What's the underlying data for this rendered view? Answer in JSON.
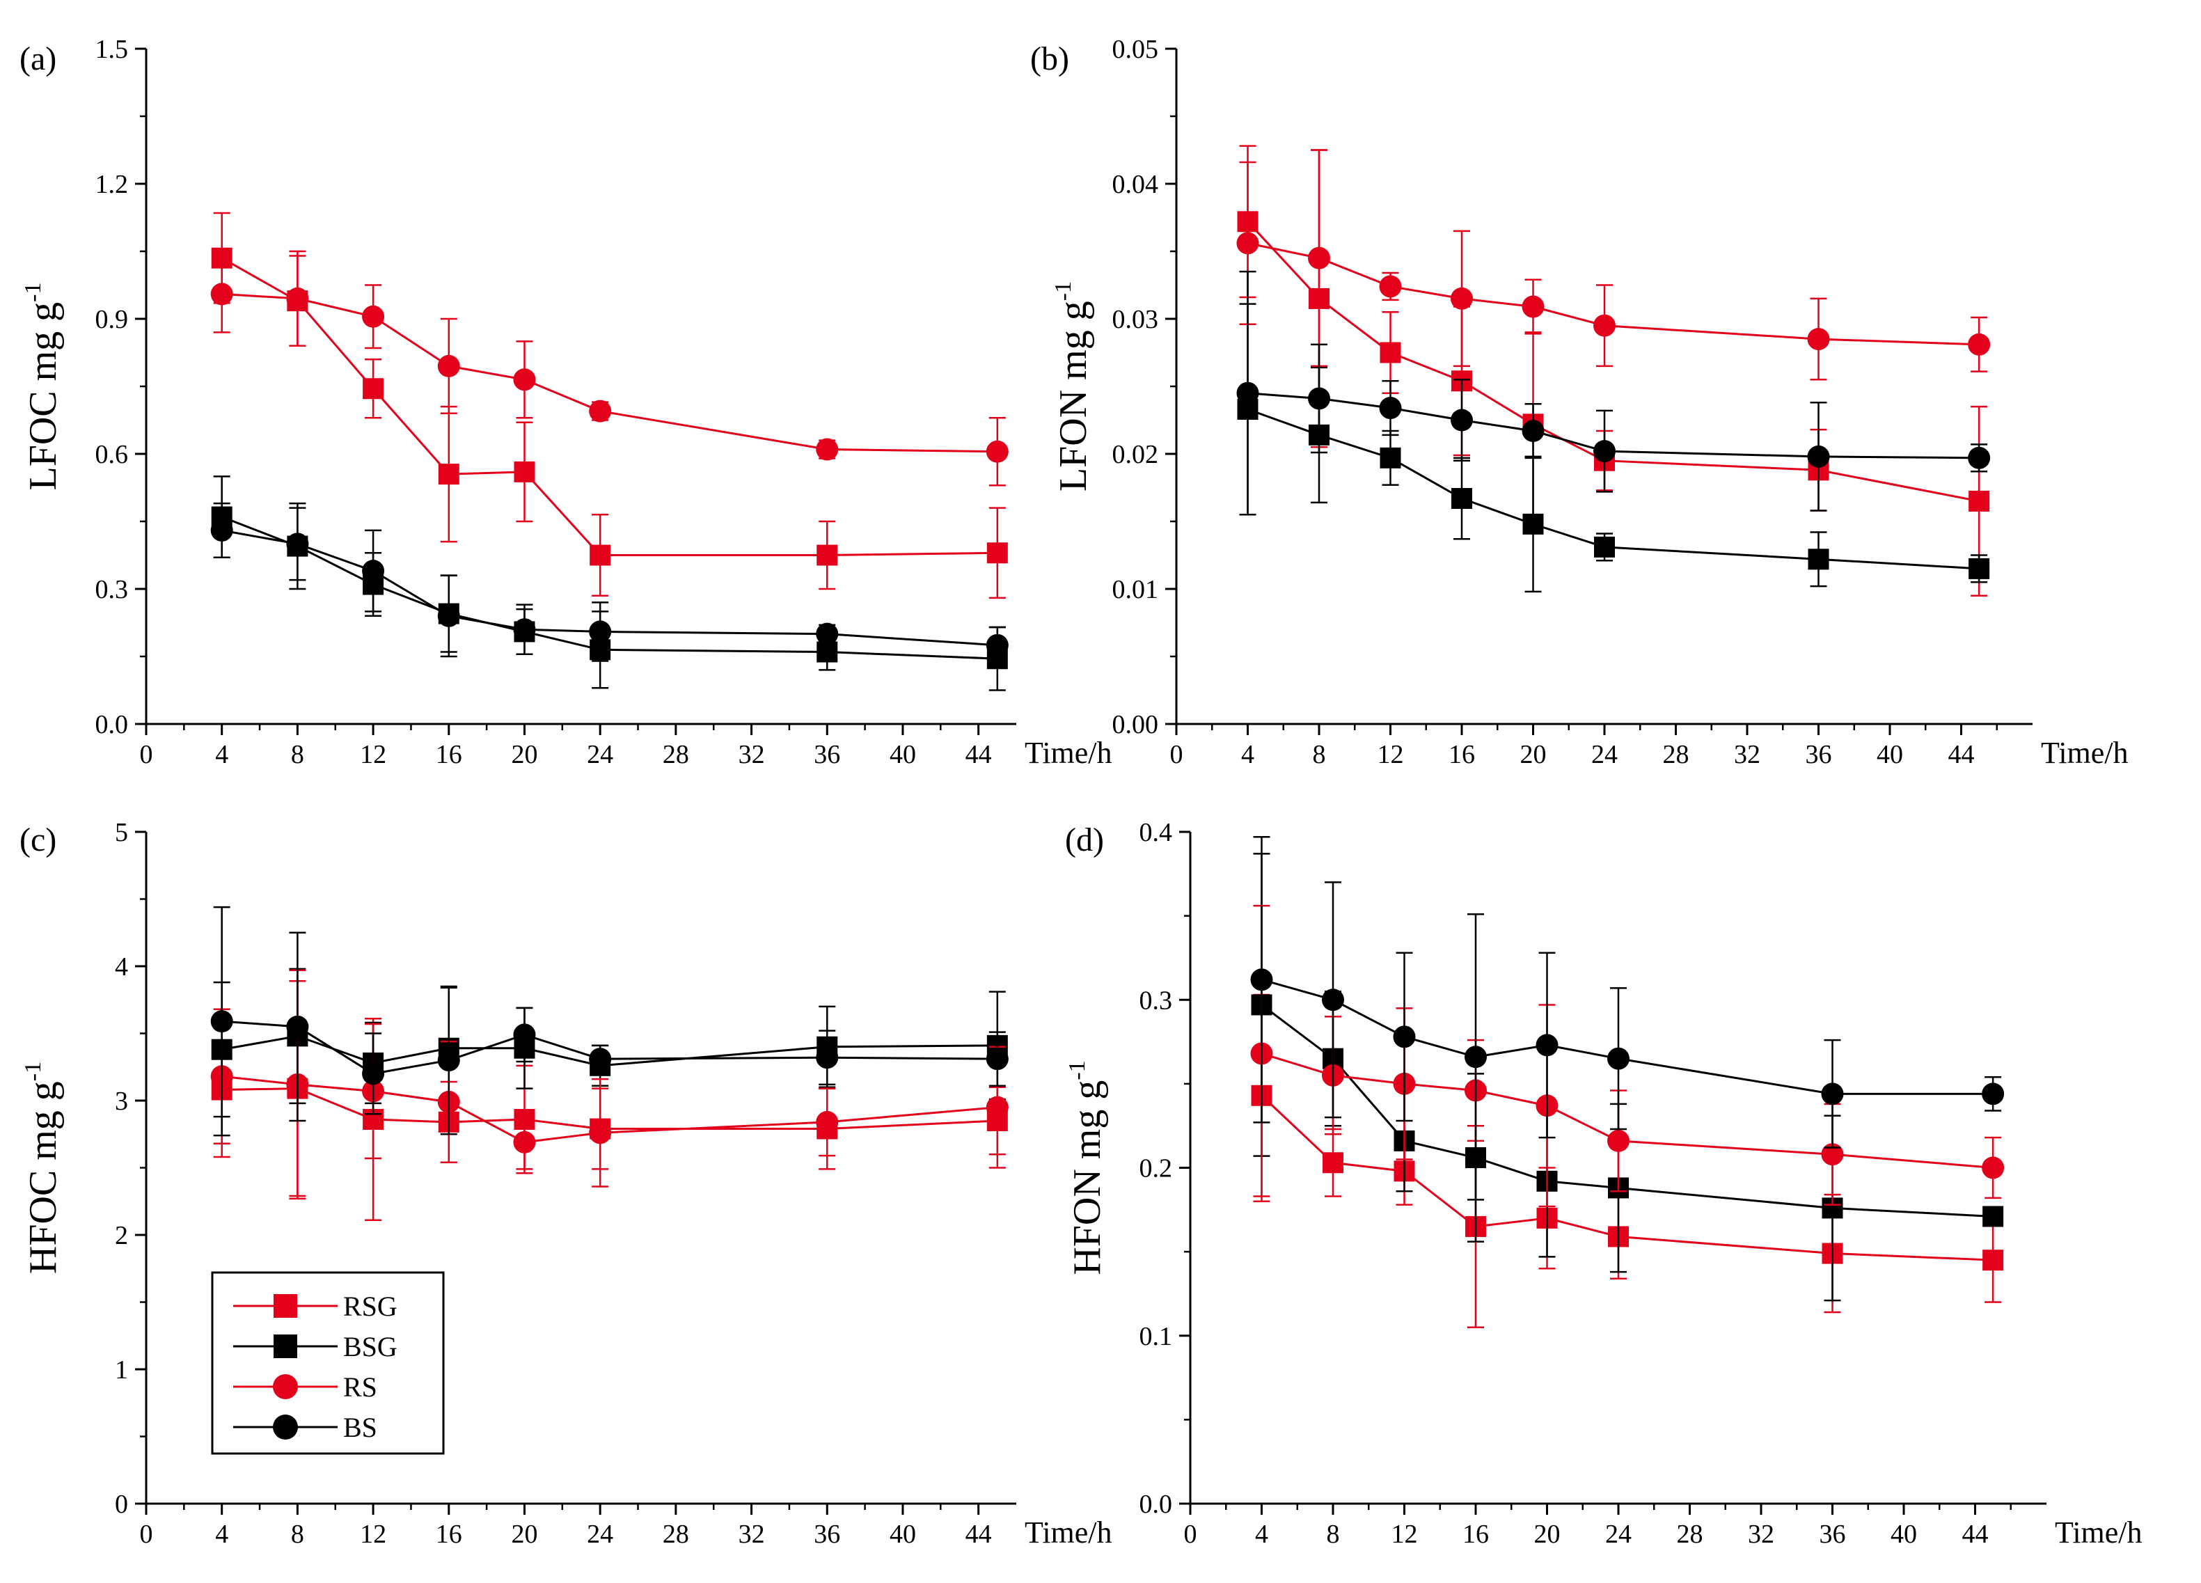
{
  "x_unit_label": "Time/h",
  "colors": {
    "red": "#e3001b",
    "black": "#000000"
  },
  "legend": [
    {
      "label": "RSG",
      "marker": "square",
      "color": "#e3001b"
    },
    {
      "label": "BSG",
      "marker": "square",
      "color": "#000000"
    },
    {
      "label": "RS",
      "marker": "circle",
      "color": "#e3001b"
    },
    {
      "label": "BS",
      "marker": "circle",
      "color": "#000000"
    }
  ],
  "chart_data": [
    {
      "type": "line",
      "panel": "(a)",
      "ylabel": "LFOC  mg g",
      "ylabel_sup": "-1",
      "xlim": [
        0,
        46
      ],
      "ylim": [
        0,
        1.5
      ],
      "xticks": [
        "0",
        "4",
        "8",
        "12",
        "16",
        "20",
        "24",
        "28",
        "32",
        "36",
        "40",
        "44"
      ],
      "yticks": [
        "0.0",
        "0.3",
        "0.6",
        "0.9",
        "1.2",
        "1.5"
      ],
      "x": [
        4,
        8,
        12,
        16,
        20,
        24,
        36,
        45
      ],
      "series": [
        {
          "name": "RSG",
          "values": [
            1.035,
            0.94,
            0.745,
            0.555,
            0.56,
            0.375,
            0.375,
            0.38
          ],
          "errors": [
            0.1,
            0.1,
            0.065,
            0.15,
            0.11,
            0.09,
            0.075,
            0.1
          ]
        },
        {
          "name": "BSG",
          "values": [
            0.46,
            0.395,
            0.31,
            0.245,
            0.205,
            0.165,
            0.16,
            0.145
          ],
          "errors": [
            0.09,
            0.095,
            0.07,
            0.085,
            0.05,
            0.085,
            0.04,
            0.07
          ]
        },
        {
          "name": "RS",
          "values": [
            0.955,
            0.945,
            0.905,
            0.795,
            0.765,
            0.695,
            0.61,
            0.605
          ],
          "errors": [
            0.085,
            0.105,
            0.07,
            0.105,
            0.085,
            0.02,
            0.02,
            0.075
          ]
        },
        {
          "name": "BS",
          "values": [
            0.43,
            0.4,
            0.34,
            0.24,
            0.21,
            0.205,
            0.2,
            0.175
          ],
          "errors": [
            0.06,
            0.08,
            0.09,
            0.09,
            0.055,
            0.065,
            0.02,
            0.04
          ]
        }
      ]
    },
    {
      "type": "line",
      "panel": "(b)",
      "ylabel": "LFON  mg g",
      "ylabel_sup": "-1",
      "xlim": [
        0,
        48
      ],
      "ylim": [
        0,
        0.05
      ],
      "xticks": [
        "0",
        "4",
        "8",
        "12",
        "16",
        "20",
        "24",
        "28",
        "32",
        "36",
        "40",
        "44"
      ],
      "yticks": [
        "0.00",
        "0.01",
        "0.02",
        "0.03",
        "0.04",
        "0.05"
      ],
      "x": [
        4,
        8,
        12,
        16,
        20,
        24,
        36,
        45
      ],
      "series": [
        {
          "name": "RSG",
          "values": [
            0.0372,
            0.0315,
            0.0275,
            0.0254,
            0.0222,
            0.0195,
            0.0188,
            0.0165
          ],
          "errors": [
            0.0056,
            0.011,
            0.003,
            0.0055,
            0.0068,
            0.0022,
            0.003,
            0.007
          ]
        },
        {
          "name": "BSG",
          "values": [
            0.0233,
            0.0214,
            0.0197,
            0.0167,
            0.0148,
            0.0131,
            0.0122,
            0.0115
          ],
          "errors": [
            0.0078,
            0.005,
            0.002,
            0.003,
            0.005,
            0.001,
            0.002,
            0.001
          ]
        },
        {
          "name": "RS",
          "values": [
            0.0356,
            0.0345,
            0.0324,
            0.0315,
            0.0309,
            0.0295,
            0.0285,
            0.0281
          ],
          "errors": [
            0.006,
            0.008,
            0.001,
            0.005,
            0.002,
            0.003,
            0.003,
            0.002
          ]
        },
        {
          "name": "BS",
          "values": [
            0.0245,
            0.0241,
            0.0234,
            0.0225,
            0.0217,
            0.0202,
            0.0198,
            0.0197
          ],
          "errors": [
            0.009,
            0.004,
            0.002,
            0.003,
            0.002,
            0.003,
            0.004,
            0.001
          ]
        }
      ]
    },
    {
      "type": "line",
      "panel": "(c)",
      "ylabel": "HFOC  mg g",
      "ylabel_sup": "-1",
      "xlim": [
        0,
        46
      ],
      "ylim": [
        0,
        5
      ],
      "xticks": [
        "0",
        "4",
        "8",
        "12",
        "16",
        "20",
        "24",
        "28",
        "32",
        "36",
        "40",
        "44"
      ],
      "yticks": [
        "0",
        "1",
        "2",
        "3",
        "4",
        "5"
      ],
      "x": [
        4,
        8,
        12,
        16,
        20,
        24,
        36,
        45
      ],
      "series": [
        {
          "name": "RSG",
          "values": [
            3.08,
            3.09,
            2.86,
            2.84,
            2.86,
            2.79,
            2.79,
            2.85
          ],
          "errors": [
            0.5,
            0.8,
            0.75,
            0.3,
            0.4,
            0.3,
            0.3,
            0.25
          ]
        },
        {
          "name": "BSG",
          "values": [
            3.38,
            3.48,
            3.28,
            3.39,
            3.39,
            3.26,
            3.4,
            3.41
          ],
          "errors": [
            0.5,
            0.5,
            0.3,
            0.45,
            0.3,
            0.15,
            0.3,
            0.4
          ]
        },
        {
          "name": "RS",
          "values": [
            3.18,
            3.12,
            3.07,
            2.99,
            2.69,
            2.76,
            2.84,
            2.95
          ],
          "errors": [
            0.5,
            0.85,
            0.5,
            0.45,
            0.2,
            0.4,
            0.25,
            0.45
          ]
        },
        {
          "name": "BS",
          "values": [
            3.59,
            3.55,
            3.2,
            3.3,
            3.49,
            3.31,
            3.32,
            3.31
          ],
          "errors": [
            0.85,
            0.7,
            0.3,
            0.55,
            0.2,
            0.1,
            0.2,
            0.2
          ]
        }
      ]
    },
    {
      "type": "line",
      "panel": "(d)",
      "ylabel": "HFON  mg g",
      "ylabel_sup": "-1",
      "xlim": [
        0,
        48
      ],
      "ylim": [
        0,
        0.4
      ],
      "xticks": [
        "0",
        "4",
        "8",
        "12",
        "16",
        "20",
        "24",
        "28",
        "32",
        "36",
        "40",
        "44"
      ],
      "yticks": [
        "0.0",
        "0.1",
        "0.2",
        "0.3",
        "0.4"
      ],
      "x": [
        4,
        8,
        12,
        16,
        20,
        24,
        36,
        45
      ],
      "series": [
        {
          "name": "RSG",
          "values": [
            0.243,
            0.203,
            0.198,
            0.165,
            0.17,
            0.159,
            0.149,
            0.145
          ],
          "errors": [
            0.06,
            0.02,
            0.02,
            0.06,
            0.03,
            0.025,
            0.035,
            0.025
          ]
        },
        {
          "name": "BSG",
          "values": [
            0.297,
            0.265,
            0.216,
            0.206,
            0.192,
            0.188,
            0.176,
            0.171
          ],
          "errors": [
            0.09,
            0.04,
            0.03,
            0.05,
            0.045,
            0.05,
            0.055,
            0.005
          ]
        },
        {
          "name": "RS",
          "values": [
            0.268,
            0.255,
            0.25,
            0.246,
            0.237,
            0.216,
            0.208,
            0.2
          ],
          "errors": [
            0.088,
            0.035,
            0.045,
            0.03,
            0.06,
            0.03,
            0.03,
            0.018
          ]
        },
        {
          "name": "BS",
          "values": [
            0.312,
            0.3,
            0.278,
            0.266,
            0.273,
            0.265,
            0.244,
            0.244
          ],
          "errors": [
            0.085,
            0.07,
            0.05,
            0.085,
            0.055,
            0.042,
            0.032,
            0.01
          ]
        }
      ]
    }
  ]
}
